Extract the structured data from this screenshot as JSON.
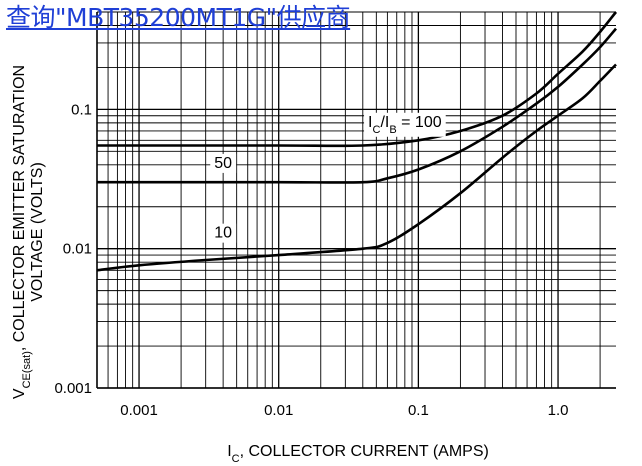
{
  "overlay_link": {
    "text": "查询\"MBT35200MT1G\"供应商",
    "color": "#1f3fd6"
  },
  "chart_data": {
    "type": "line",
    "x_scale": "log",
    "y_scale": "log",
    "xlim": [
      0.0005,
      2.6
    ],
    "ylim": [
      0.001,
      0.5
    ],
    "xticks": [
      {
        "value": 0.001,
        "label": "0.001"
      },
      {
        "value": 0.01,
        "label": "0.01"
      },
      {
        "value": 0.1,
        "label": "0.1"
      },
      {
        "value": 1.0,
        "label": "1.0"
      }
    ],
    "yticks": [
      {
        "value": 0.1,
        "label": "0.1"
      },
      {
        "value": 0.01,
        "label": "0.01"
      },
      {
        "value": 0.001,
        "label": "0.001"
      }
    ],
    "xlabel": {
      "main": "I",
      "sub": "C",
      "rest": ", COLLECTOR CURRENT (AMPS)"
    },
    "ylabel": {
      "line1_main": "V",
      "line1_sub": "CE(sat)",
      "line1_rest": ", COLLECTOR EMITTER SATURATION",
      "line2": "VOLTAGE (VOLTS)"
    },
    "grid": true,
    "series": [
      {
        "label_parts": {
          "main1": "I",
          "sub1": "C",
          "mid": "/I",
          "sub2": "B",
          "rest": " = 100"
        },
        "label_anchor": {
          "x": 0.08,
          "y": 0.075
        },
        "points": [
          [
            0.0005,
            0.055
          ],
          [
            0.001,
            0.055
          ],
          [
            0.01,
            0.055
          ],
          [
            0.04,
            0.055
          ],
          [
            0.1,
            0.06
          ],
          [
            0.2,
            0.07
          ],
          [
            0.4,
            0.09
          ],
          [
            0.7,
            0.13
          ],
          [
            1.0,
            0.18
          ],
          [
            1.5,
            0.26
          ],
          [
            2.0,
            0.36
          ],
          [
            2.6,
            0.5
          ]
        ]
      },
      {
        "label_parts": {
          "main1": "50",
          "sub1": "",
          "mid": "",
          "sub2": "",
          "rest": ""
        },
        "label_anchor": {
          "x": 0.004,
          "y": 0.038
        },
        "points": [
          [
            0.0005,
            0.03
          ],
          [
            0.001,
            0.03
          ],
          [
            0.01,
            0.03
          ],
          [
            0.04,
            0.03
          ],
          [
            0.06,
            0.032
          ],
          [
            0.1,
            0.037
          ],
          [
            0.2,
            0.05
          ],
          [
            0.4,
            0.075
          ],
          [
            0.7,
            0.11
          ],
          [
            1.0,
            0.145
          ],
          [
            1.5,
            0.21
          ],
          [
            2.0,
            0.28
          ],
          [
            2.6,
            0.38
          ]
        ]
      },
      {
        "label_parts": {
          "main1": "10",
          "sub1": "",
          "mid": "",
          "sub2": "",
          "rest": ""
        },
        "label_anchor": {
          "x": 0.004,
          "y": 0.012
        },
        "points": [
          [
            0.0005,
            0.007
          ],
          [
            0.001,
            0.0076
          ],
          [
            0.003,
            0.0083
          ],
          [
            0.01,
            0.009
          ],
          [
            0.04,
            0.01
          ],
          [
            0.06,
            0.011
          ],
          [
            0.1,
            0.015
          ],
          [
            0.2,
            0.025
          ],
          [
            0.4,
            0.045
          ],
          [
            0.7,
            0.07
          ],
          [
            1.0,
            0.09
          ],
          [
            1.5,
            0.12
          ],
          [
            2.0,
            0.16
          ],
          [
            2.6,
            0.21
          ]
        ]
      }
    ]
  }
}
